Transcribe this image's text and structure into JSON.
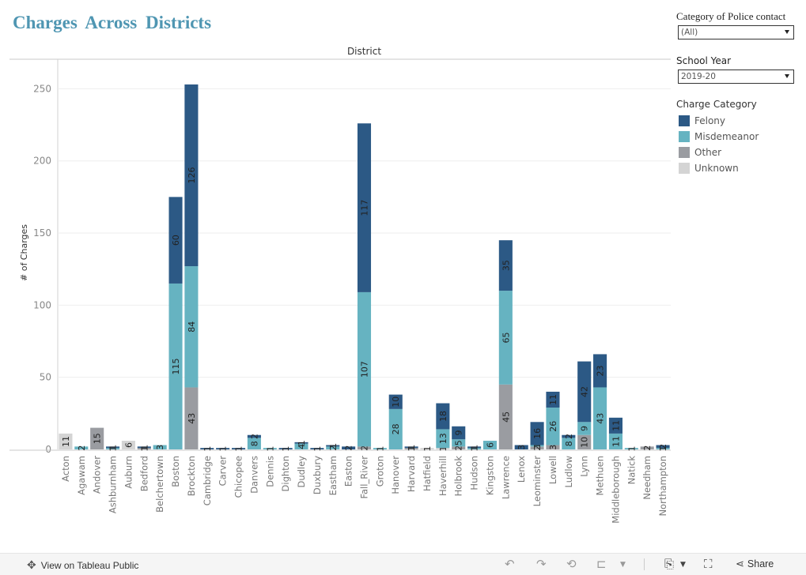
{
  "title": "Charges Across Districts",
  "filters": {
    "police_contact": {
      "label": "Category of Police contact",
      "value": "(All)"
    },
    "school_year": {
      "label": "School Year",
      "value": "2019-20"
    }
  },
  "legend": {
    "title": "Charge Category",
    "items": [
      {
        "label": "Felony",
        "color": "#2c5985"
      },
      {
        "label": "Misdemeanor",
        "color": "#66b3c1"
      },
      {
        "label": "Other",
        "color": "#9a9ca1"
      },
      {
        "label": "Unknown",
        "color": "#d4d4d4"
      }
    ]
  },
  "footer": {
    "view_label": "View on Tableau Public",
    "share_label": "Share"
  },
  "chart_data": {
    "type": "bar",
    "stacked": true,
    "title": "District",
    "xlabel": "District",
    "ylabel": "# of Charges",
    "ylim": [
      0,
      265
    ],
    "yticks": [
      0,
      50,
      100,
      150,
      200,
      250
    ],
    "grid": true,
    "legend_position": "right",
    "categories": [
      "Acton",
      "Agawam",
      "Andover",
      "Ashburnham",
      "Auburn",
      "Bedford",
      "Belchertown",
      "Boston",
      "Brockton",
      "Cambridge",
      "Carver",
      "Chicopee",
      "Danvers",
      "Dennis",
      "Dighton",
      "Dudley",
      "Duxbury",
      "Eastham",
      "Easton",
      "Fall_River",
      "Groton",
      "Hanover",
      "Harvard",
      "Hatfield",
      "Haverhill",
      "Holbrook",
      "Hudson",
      "Kingston",
      "Lawrence",
      "Lenox",
      "Leominster",
      "Lowell",
      "Ludlow",
      "Lynn",
      "Methuen",
      "Middleborough",
      "Natick",
      "Needham",
      "Northampton"
    ],
    "series": [
      {
        "name": "Unknown",
        "values": [
          11,
          0,
          0,
          0,
          6,
          0,
          0,
          0,
          0,
          0,
          0,
          0,
          0,
          0,
          0,
          0,
          0,
          0,
          0,
          0,
          0,
          0,
          0,
          1,
          1,
          0,
          0,
          0,
          0,
          0,
          0,
          0,
          0,
          0,
          0,
          0,
          0,
          0,
          0
        ]
      },
      {
        "name": "Other",
        "values": [
          0,
          0,
          15,
          0,
          0,
          1,
          0,
          0,
          43,
          0,
          0,
          0,
          0,
          0,
          0,
          0,
          0,
          0,
          0,
          2,
          0,
          0,
          1,
          0,
          0,
          2,
          0,
          0,
          45,
          0,
          2,
          3,
          0,
          10,
          0,
          0,
          0,
          2,
          0
        ]
      },
      {
        "name": "Misdemeanor",
        "values": [
          0,
          2,
          0,
          1,
          0,
          0,
          3,
          115,
          84,
          0,
          0,
          0,
          8,
          1,
          0,
          4,
          0,
          2,
          0,
          107,
          1,
          28,
          0,
          0,
          13,
          5,
          1,
          6,
          65,
          0,
          1,
          26,
          8,
          9,
          43,
          11,
          1,
          0,
          1
        ]
      },
      {
        "name": "Felony",
        "values": [
          0,
          0,
          0,
          1,
          0,
          1,
          0,
          60,
          126,
          1,
          1,
          1,
          2,
          0,
          1,
          1,
          1,
          1,
          2,
          117,
          0,
          10,
          1,
          0,
          18,
          9,
          1,
          0,
          35,
          3,
          16,
          11,
          2,
          42,
          23,
          11,
          0,
          0,
          2
        ]
      }
    ]
  }
}
